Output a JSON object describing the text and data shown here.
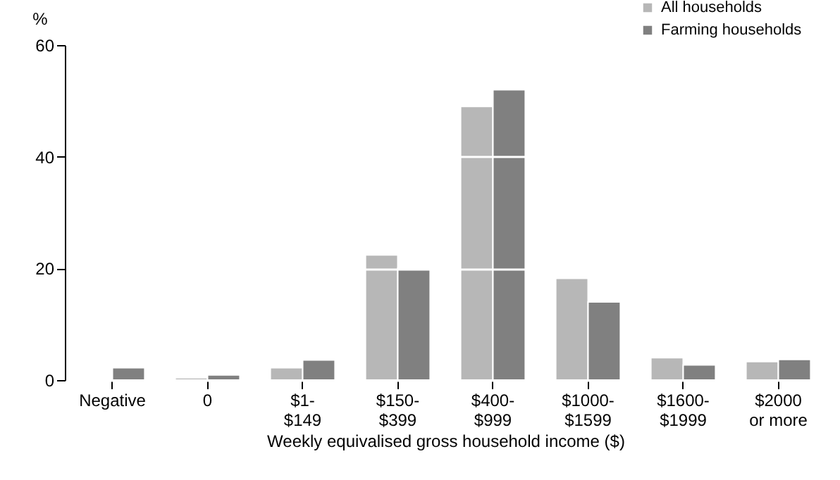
{
  "chart_data": {
    "type": "bar",
    "xlabel": "Weekly equivalised gross household income ($)",
    "ylabel": "%",
    "categories": [
      "Negative",
      "0",
      "$1-\n$149",
      "$150-\n$399",
      "$400-\n$999",
      "$1000-\n$1599",
      "$1600-\n$1999",
      "$2000\nor more"
    ],
    "series": [
      {
        "name": "All households",
        "color": "#b7b7b7",
        "values": [
          null,
          0.4,
          2.2,
          22.4,
          49,
          18.2,
          4,
          3.3
        ]
      },
      {
        "name": "Farming households",
        "color": "#808080",
        "values": [
          2.2,
          0.9,
          3.6,
          20,
          52,
          14,
          2.7,
          3.7
        ]
      }
    ],
    "ylim": [
      0,
      60
    ],
    "yticks": [
      0,
      20,
      40,
      60
    ],
    "grid": "y",
    "legend": "top right"
  }
}
